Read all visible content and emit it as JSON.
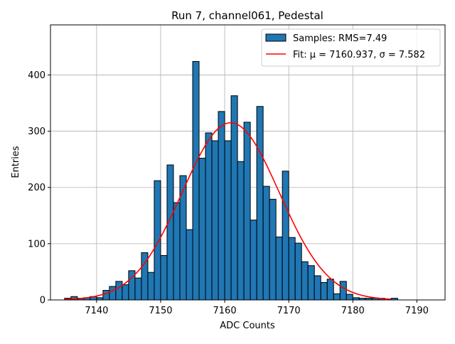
{
  "chart_data": {
    "type": "bar",
    "title": "Run 7, channel061, Pedestal",
    "xlabel": "ADC Counts",
    "ylabel": "Entries",
    "xlim": [
      7132.8,
      7194.4
    ],
    "ylim": [
      0,
      489
    ],
    "xticks": [
      7140,
      7150,
      7160,
      7170,
      7180,
      7190
    ],
    "yticks": [
      0,
      100,
      200,
      300,
      400
    ],
    "grid": true,
    "legend_position": "top-right",
    "bin_width": 1,
    "bin_start": 7135,
    "counts": [
      3,
      6,
      3,
      4,
      6,
      4,
      17,
      24,
      33,
      27,
      52,
      39,
      84,
      49,
      212,
      79,
      240,
      173,
      221,
      125,
      424,
      252,
      297,
      283,
      335,
      283,
      363,
      246,
      316,
      142,
      344,
      202,
      179,
      112,
      229,
      111,
      101,
      68,
      61,
      43,
      31,
      37,
      11,
      33,
      10,
      4,
      3,
      3,
      3,
      3,
      0,
      3,
      0
    ],
    "series": [
      {
        "name": "Samples: RMS=7.49",
        "kind": "histogram",
        "color": "#1f77b4",
        "edge_color": "#000000"
      },
      {
        "name": "Fit: μ = 7160.937, σ = 7.582",
        "kind": "gaussian",
        "color": "#ff0000",
        "mu": 7160.937,
        "sigma": 7.582,
        "amplitude": 315,
        "x_range": [
          7135,
          7186
        ]
      }
    ]
  }
}
